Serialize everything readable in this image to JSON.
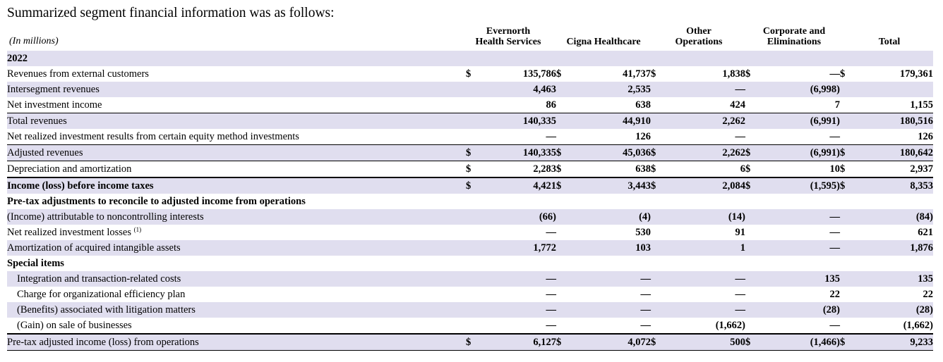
{
  "intro": "Summarized segment financial information was as follows:",
  "units": "(In millions)",
  "columns": [
    {
      "label": "Evernorth\nHealth Services"
    },
    {
      "label": "Cigna Healthcare"
    },
    {
      "label": "Other\nOperations"
    },
    {
      "label": "Corporate and\nEliminations"
    },
    {
      "label": "Total"
    }
  ],
  "rows": [
    {
      "label": "2022",
      "style": "year",
      "shade": true
    },
    {
      "label": "Revenues from external customers",
      "dollar": true,
      "values": [
        "135,786",
        "41,737",
        "1,838",
        "—",
        "179,361"
      ]
    },
    {
      "label": "Intersegment revenues",
      "shade": true,
      "values": [
        "4,463",
        "2,535",
        "—",
        "(6,998)",
        ""
      ]
    },
    {
      "label": "Net investment income",
      "values": [
        "86",
        "638",
        "424",
        "7",
        "1,155"
      ]
    },
    {
      "label": "Total revenues",
      "shade": true,
      "rule": "top",
      "values": [
        "140,335",
        "44,910",
        "2,262",
        "(6,991)",
        "180,516"
      ]
    },
    {
      "label": "Net realized investment results from certain equity method investments",
      "values": [
        "—",
        "126",
        "—",
        "—",
        "126"
      ]
    },
    {
      "label": "Adjusted revenues",
      "shade": true,
      "rule": "top",
      "dollar": true,
      "values": [
        "140,335",
        "45,036",
        "2,262",
        "(6,991)",
        "180,642"
      ]
    },
    {
      "label": "Depreciation and amortization",
      "rule": "top",
      "dollar": true,
      "values": [
        "2,283",
        "638",
        "6",
        "10",
        "2,937"
      ]
    },
    {
      "label": "Income (loss) before income taxes",
      "bold": true,
      "shade": true,
      "rule": "thick-top",
      "dollar": true,
      "values": [
        "4,421",
        "3,443",
        "2,084",
        "(1,595)",
        "8,353"
      ]
    },
    {
      "label": "Pre-tax adjustments to reconcile to adjusted income from operations",
      "style": "section"
    },
    {
      "label": "(Income) attributable to noncontrolling interests",
      "shade": true,
      "values": [
        "(66)",
        "(4)",
        "(14)",
        "—",
        "(84)"
      ]
    },
    {
      "label": "Net realized investment losses",
      "footnote": "(1)",
      "values": [
        "—",
        "530",
        "91",
        "—",
        "621"
      ]
    },
    {
      "label": "Amortization of acquired intangible assets",
      "shade": true,
      "values": [
        "1,772",
        "103",
        "1",
        "—",
        "1,876"
      ]
    },
    {
      "label": "Special items",
      "style": "section"
    },
    {
      "label": "Integration and transaction-related costs",
      "indent": true,
      "shade": true,
      "values": [
        "—",
        "—",
        "—",
        "135",
        "135"
      ]
    },
    {
      "label": "Charge for organizational efficiency plan",
      "indent": true,
      "values": [
        "—",
        "—",
        "—",
        "22",
        "22"
      ]
    },
    {
      "label": "(Benefits) associated with litigation matters",
      "indent": true,
      "shade": true,
      "values": [
        "—",
        "—",
        "—",
        "(28)",
        "(28)"
      ]
    },
    {
      "label": "(Gain) on sale of businesses",
      "indent": true,
      "values": [
        "—",
        "—",
        "(1,662)",
        "—",
        "(1,662)"
      ]
    },
    {
      "label": "Pre-tax adjusted income (loss) from operations",
      "shade": true,
      "rule": "thick-top-bottom",
      "dollar": true,
      "values": [
        "6,127",
        "4,072",
        "500",
        "(1,466)",
        "9,233"
      ]
    }
  ],
  "currency_symbol": "$"
}
